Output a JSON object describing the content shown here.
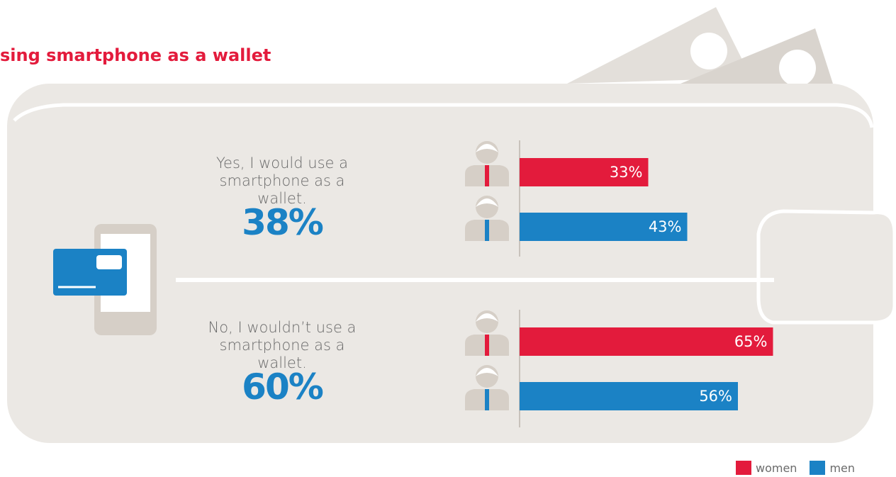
{
  "chart_data": {
    "type": "bar",
    "title": "sing smartphone as a wallet",
    "categories": [
      "Yes, I would use a smartphone as a wallet.",
      "No, I wouldn’t use a smartphone as a wallet."
    ],
    "totals": {
      "values": [
        38,
        60
      ],
      "value_labels": [
        "38%",
        "60%"
      ],
      "color": "#1b82c5"
    },
    "series": [
      {
        "name": "women",
        "color": "#e31b3c",
        "values": [
          33,
          65
        ],
        "value_labels": [
          "33%",
          "65%"
        ]
      },
      {
        "name": "men",
        "color": "#1b82c5",
        "values": [
          43,
          56
        ],
        "value_labels": [
          "43%",
          "56%"
        ]
      }
    ]
  }
}
